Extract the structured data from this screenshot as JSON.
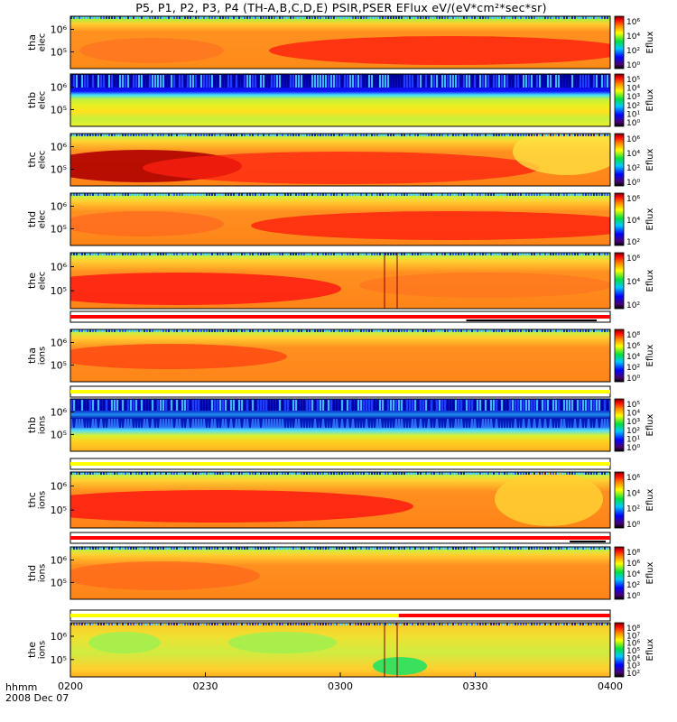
{
  "title": "P5, P1, P2, P3, P4 (TH-A,B,C,D,E) PSIR,PSER EFlux eV/(eV*cm²*sec*sr)",
  "footer": {
    "time_unit": "hhmm",
    "date": "2008 Dec 07"
  },
  "colors": {
    "flag_red": "#ff0000",
    "flag_yellow": "#ffff00",
    "flag_black": "#000000"
  },
  "chart_data": {
    "type": "heatmap",
    "x_ticks": [
      "0200",
      "0230",
      "0300",
      "0330",
      "0400"
    ],
    "x_range": [
      "0200",
      "0400"
    ],
    "colorbar_label": "Eflux",
    "panels": [
      {
        "id": "tha-elec",
        "probe": "tha",
        "species": "elec",
        "y_ticks": [
          "10⁶",
          "10⁵"
        ],
        "y_scale": "log",
        "cbar_ticks": [
          "10⁶",
          "10⁴",
          "10²",
          "10⁰"
        ]
      },
      {
        "id": "thb-elec",
        "probe": "thb",
        "species": "elec",
        "y_ticks": [
          "10⁶",
          "10⁵"
        ],
        "y_scale": "log",
        "cbar_ticks": [
          "10⁵",
          "10⁴",
          "10³",
          "10²",
          "10¹",
          "10⁰"
        ]
      },
      {
        "id": "thc-elec",
        "probe": "thc",
        "species": "elec",
        "y_ticks": [
          "10⁶",
          "10⁵"
        ],
        "y_scale": "log",
        "cbar_ticks": [
          "10⁶",
          "10⁴",
          "10²",
          "10⁰"
        ]
      },
      {
        "id": "thd-elec",
        "probe": "thd",
        "species": "elec",
        "y_ticks": [
          "10⁶",
          "10⁵"
        ],
        "y_scale": "log",
        "cbar_ticks": [
          "10⁶",
          "10⁴",
          "10²"
        ]
      },
      {
        "id": "the-elec",
        "probe": "the",
        "species": "elec",
        "y_ticks": [
          "10⁶",
          "10⁵"
        ],
        "y_scale": "log",
        "cbar_ticks": [
          "10⁶",
          "10⁴",
          "10²"
        ]
      },
      {
        "id": "tha-ions",
        "probe": "tha",
        "species": "ions",
        "y_ticks": [
          "10⁶",
          "10⁵"
        ],
        "y_scale": "log",
        "cbar_ticks": [
          "10⁸",
          "10⁶",
          "10⁴",
          "10²",
          "10⁰"
        ]
      },
      {
        "id": "thb-ions",
        "probe": "thb",
        "species": "ions",
        "y_ticks": [
          "10⁶",
          "10⁵"
        ],
        "y_scale": "log",
        "cbar_ticks": [
          "10⁵",
          "10⁴",
          "10³",
          "10²",
          "10¹",
          "10⁰"
        ]
      },
      {
        "id": "thc-ions",
        "probe": "thc",
        "species": "ions",
        "y_ticks": [
          "10⁶",
          "10⁵"
        ],
        "y_scale": "log",
        "cbar_ticks": [
          "10⁶",
          "10⁴",
          "10²",
          "10⁰"
        ]
      },
      {
        "id": "thd-ions",
        "probe": "thd",
        "species": "ions",
        "y_ticks": [
          "10⁶",
          "10⁵"
        ],
        "y_scale": "log",
        "cbar_ticks": [
          "10⁸",
          "10⁶",
          "10⁴",
          "10²",
          "10⁰"
        ]
      },
      {
        "id": "the-ions",
        "probe": "the",
        "species": "ions",
        "y_ticks": [
          "10⁶",
          "10⁵"
        ],
        "y_scale": "log",
        "cbar_ticks": [
          "10⁸",
          "10⁷",
          "10⁶",
          "10⁵",
          "10⁴",
          "10³",
          "10²"
        ]
      }
    ],
    "mode_bars": [
      {
        "after_panel": "the-elec",
        "segments": [
          {
            "from": "0200",
            "to": "0400",
            "color": "red"
          }
        ],
        "black_segments": [
          {
            "from": "0328",
            "to": "0357"
          }
        ]
      },
      {
        "after_panel": "tha-ions",
        "segments": [
          {
            "from": "0200",
            "to": "0400",
            "color": "yellow"
          }
        ]
      },
      {
        "after_panel": "thb-ions",
        "segments": [
          {
            "from": "0200",
            "to": "0400",
            "color": "yellow"
          }
        ]
      },
      {
        "after_panel": "thc-ions",
        "segments": [
          {
            "from": "0200",
            "to": "0400",
            "color": "red"
          }
        ],
        "black_segments": [
          {
            "from": "0351",
            "to": "0359"
          }
        ]
      },
      {
        "after_panel": "thd-ions",
        "segments": [
          {
            "from": "0200",
            "to": "0313",
            "color": "yellow"
          },
          {
            "from": "0313",
            "to": "0400",
            "color": "red"
          }
        ]
      }
    ]
  }
}
